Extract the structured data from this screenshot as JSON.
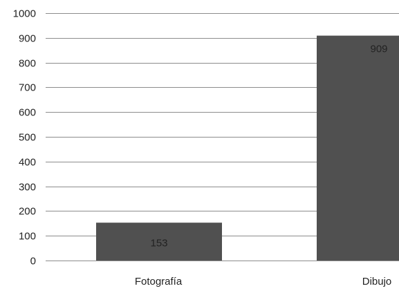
{
  "chart_data": {
    "type": "bar",
    "categories": [
      "Fotografía",
      "Dibujo"
    ],
    "values": [
      153,
      909
    ],
    "data_labels": [
      "153",
      "909"
    ],
    "ylim": [
      0,
      1000
    ],
    "yticks": [
      0,
      100,
      200,
      300,
      400,
      500,
      600,
      700,
      800,
      900,
      1000
    ],
    "ytick_labels": [
      "0",
      "100",
      "200",
      "300",
      "400",
      "500",
      "600",
      "700",
      "800",
      "900",
      "1000"
    ],
    "grid": true,
    "legend": "none",
    "colors": {
      "bar": "#505050",
      "grid": "#8c8c8c",
      "text": "#222222"
    }
  }
}
